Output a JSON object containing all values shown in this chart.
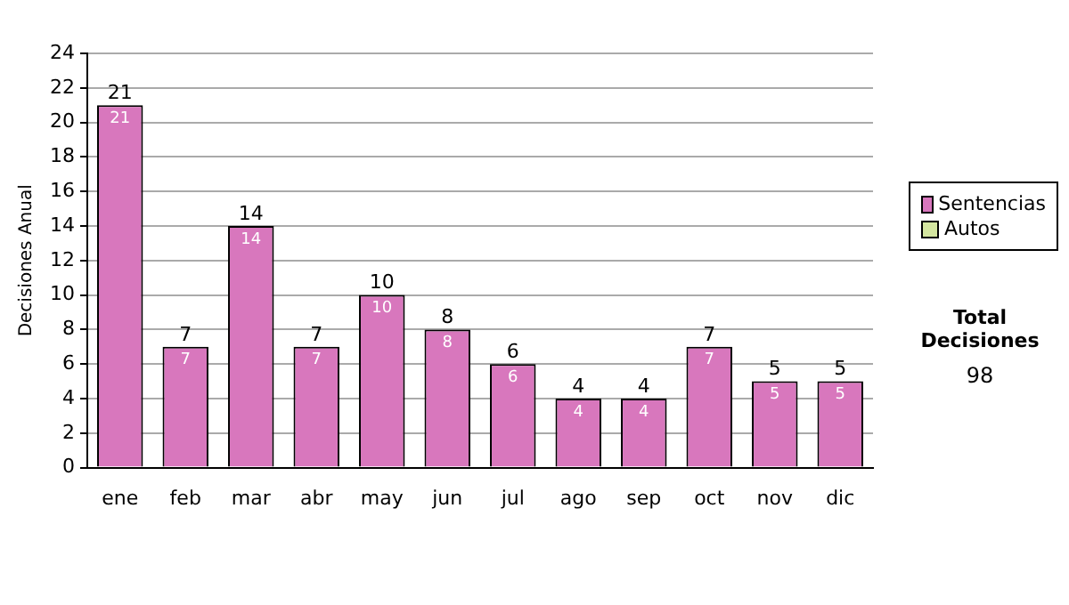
{
  "chart_data": {
    "type": "bar",
    "stacked": true,
    "ylabel": "Decisiones Anual",
    "categories": [
      "ene",
      "feb",
      "mar",
      "abr",
      "may",
      "jun",
      "jul",
      "ago",
      "sep",
      "oct",
      "nov",
      "dic"
    ],
    "series": [
      {
        "name": "Sentencias",
        "color": "#d877bd",
        "values": [
          21,
          7,
          14,
          7,
          10,
          8,
          6,
          4,
          4,
          7,
          5,
          5
        ],
        "value_labels": [
          "21",
          "7",
          "14",
          "7",
          "10",
          "8",
          "6",
          "4",
          "4",
          "7",
          "5",
          "5"
        ]
      },
      {
        "name": "Autos",
        "color": "#d4e6a0",
        "values": [
          0,
          0,
          0,
          0,
          0,
          0,
          0,
          0,
          0,
          0,
          0,
          0
        ]
      }
    ],
    "totals": [
      "21",
      "7",
      "14",
      "7",
      "10",
      "8",
      "6",
      "4",
      "4",
      "7",
      "5",
      "5"
    ],
    "ylim": [
      0,
      24
    ],
    "yticks": [
      0,
      2,
      4,
      6,
      8,
      10,
      12,
      14,
      16,
      18,
      20,
      22,
      24
    ],
    "grid": "y",
    "legend": "right",
    "annotations": [
      "Total Decisiones",
      "98"
    ]
  }
}
